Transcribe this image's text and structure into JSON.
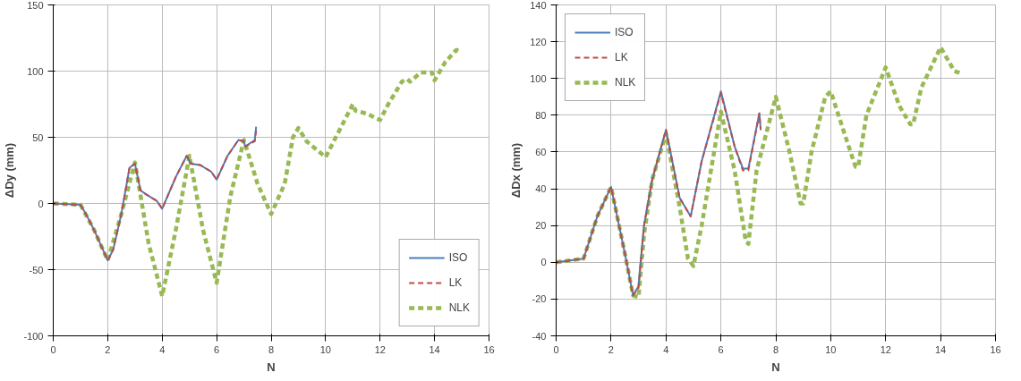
{
  "chart_data": [
    {
      "type": "line",
      "xlabel": "N",
      "ylabel": "ΔDy (mm)",
      "xlim": [
        0,
        16
      ],
      "ylim": [
        -100,
        150
      ],
      "xticks": [
        0,
        2,
        4,
        6,
        8,
        10,
        12,
        14,
        16
      ],
      "yticks": [
        -100,
        -50,
        0,
        50,
        100,
        150
      ],
      "grid": true,
      "legend": "bottom right",
      "marker": "none",
      "series": [
        {
          "name": "ISO",
          "color": "#4a7ebb",
          "line_style": "solid",
          "x": [
            0,
            0.5,
            1,
            1.2,
            1.5,
            2,
            2.2,
            2.5,
            2.8,
            3,
            3.2,
            3.4,
            3.8,
            4,
            4.5,
            4.9,
            5.05,
            5.4,
            5.8,
            6,
            6.4,
            6.8,
            7,
            7.05,
            7.4,
            7.45
          ],
          "values": [
            0,
            -0.5,
            -1,
            -8,
            -20,
            -43,
            -35,
            -8,
            27,
            30,
            10,
            7,
            2,
            -4,
            20,
            36,
            30,
            29,
            24,
            18,
            36,
            48,
            47,
            43,
            48,
            58
          ]
        },
        {
          "name": "LK",
          "color": "#be4b48",
          "line_style": "dashed",
          "x": [
            0,
            0.5,
            1,
            1.2,
            1.5,
            2,
            2.2,
            2.5,
            2.8,
            3,
            3.2,
            3.4,
            3.8,
            4,
            4.5,
            4.9,
            5.05,
            5.4,
            5.8,
            6,
            6.4,
            6.8,
            7,
            7.05,
            7.4,
            7.45
          ],
          "values": [
            0,
            -0.5,
            -1,
            -8,
            -20,
            -43,
            -35,
            -8,
            27,
            30,
            10,
            7,
            2,
            -4,
            20,
            36,
            30,
            29,
            24,
            18,
            36,
            48,
            47,
            43,
            47,
            55
          ]
        },
        {
          "name": "NLK",
          "color": "#98b954",
          "line_style": "dashed",
          "x": [
            0,
            1,
            1.5,
            2,
            2.5,
            3,
            3.5,
            4,
            4.5,
            5,
            5.5,
            6,
            6.5,
            7,
            7.5,
            8,
            8.5,
            8.8,
            9,
            9.3,
            10,
            10.5,
            11,
            11.1,
            11.5,
            12,
            12.3,
            12.8,
            13,
            13.1,
            13.5,
            13.9,
            14,
            14.4,
            14.8,
            14.9
          ],
          "values": [
            0,
            -1,
            -20,
            -43,
            -8,
            31,
            -30,
            -70,
            -20,
            36,
            -20,
            -60,
            5,
            48,
            15,
            -8,
            15,
            50,
            57,
            47,
            35,
            55,
            75,
            70,
            68,
            63,
            75,
            92,
            94,
            92,
            99,
            99,
            93,
            107,
            116,
            115
          ]
        }
      ]
    },
    {
      "type": "line",
      "xlabel": "N",
      "ylabel": "ΔDx (mm)",
      "xlim": [
        0,
        16
      ],
      "ylim": [
        -40,
        140
      ],
      "xticks": [
        0,
        2,
        4,
        6,
        8,
        10,
        12,
        14,
        16
      ],
      "yticks": [
        -40,
        -20,
        0,
        20,
        40,
        60,
        80,
        100,
        120,
        140
      ],
      "grid": true,
      "legend": "top left",
      "marker": "none",
      "series": [
        {
          "name": "ISO",
          "color": "#4a7ebb",
          "line_style": "solid",
          "x": [
            0,
            1,
            1.5,
            2,
            2.5,
            2.8,
            3,
            3.2,
            3.5,
            4,
            4.5,
            4.9,
            5.3,
            6,
            6.5,
            6.8,
            7,
            7.4,
            7.45
          ],
          "values": [
            0,
            2,
            25,
            41,
            5,
            -18,
            -13,
            20,
            45,
            72,
            35,
            25,
            55,
            93,
            63,
            51,
            51,
            81,
            72
          ]
        },
        {
          "name": "LK",
          "color": "#be4b48",
          "line_style": "dashed",
          "x": [
            0,
            1,
            1.5,
            2,
            2.5,
            2.8,
            3,
            3.2,
            3.5,
            4,
            4.5,
            4.9,
            5.3,
            6,
            6.5,
            6.8,
            7,
            7.4,
            7.45
          ],
          "values": [
            0,
            2,
            25,
            41,
            5,
            -18,
            -14,
            20,
            45,
            72,
            35,
            25,
            55,
            92,
            63,
            50,
            50,
            81,
            72
          ]
        },
        {
          "name": "NLK",
          "color": "#98b954",
          "line_style": "dashed",
          "x": [
            0,
            1,
            1.5,
            2,
            2.5,
            2.8,
            3,
            3.2,
            3.5,
            4,
            4.5,
            4.8,
            5,
            5.3,
            6,
            6.5,
            6.9,
            7,
            7.3,
            8,
            8.5,
            8.9,
            9,
            9.3,
            9.8,
            10,
            10.5,
            10.9,
            11,
            11.3,
            12,
            12.5,
            12.9,
            13,
            13.3,
            14,
            14.5,
            14.7
          ],
          "values": [
            0,
            2,
            25,
            41,
            5,
            -18,
            -19,
            15,
            45,
            70,
            30,
            2,
            -2,
            20,
            82,
            50,
            12,
            10,
            50,
            90,
            60,
            32,
            32,
            60,
            90,
            93,
            70,
            52,
            52,
            80,
            106,
            85,
            75,
            75,
            95,
            117,
            104,
            103
          ]
        }
      ]
    }
  ]
}
